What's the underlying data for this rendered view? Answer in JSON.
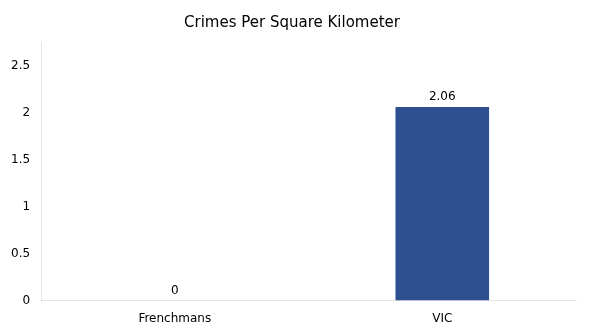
{
  "chart_data": {
    "type": "bar",
    "title": "Crimes Per Square Kilometer",
    "categories": [
      "Frenchmans",
      "VIC"
    ],
    "values": [
      0,
      2.06
    ],
    "color": "#2e5090",
    "ylim": [
      0,
      2.75
    ],
    "yticks": [
      0,
      0.5,
      1,
      1.5,
      2,
      2.5
    ],
    "grid": false,
    "data_labels": true
  }
}
